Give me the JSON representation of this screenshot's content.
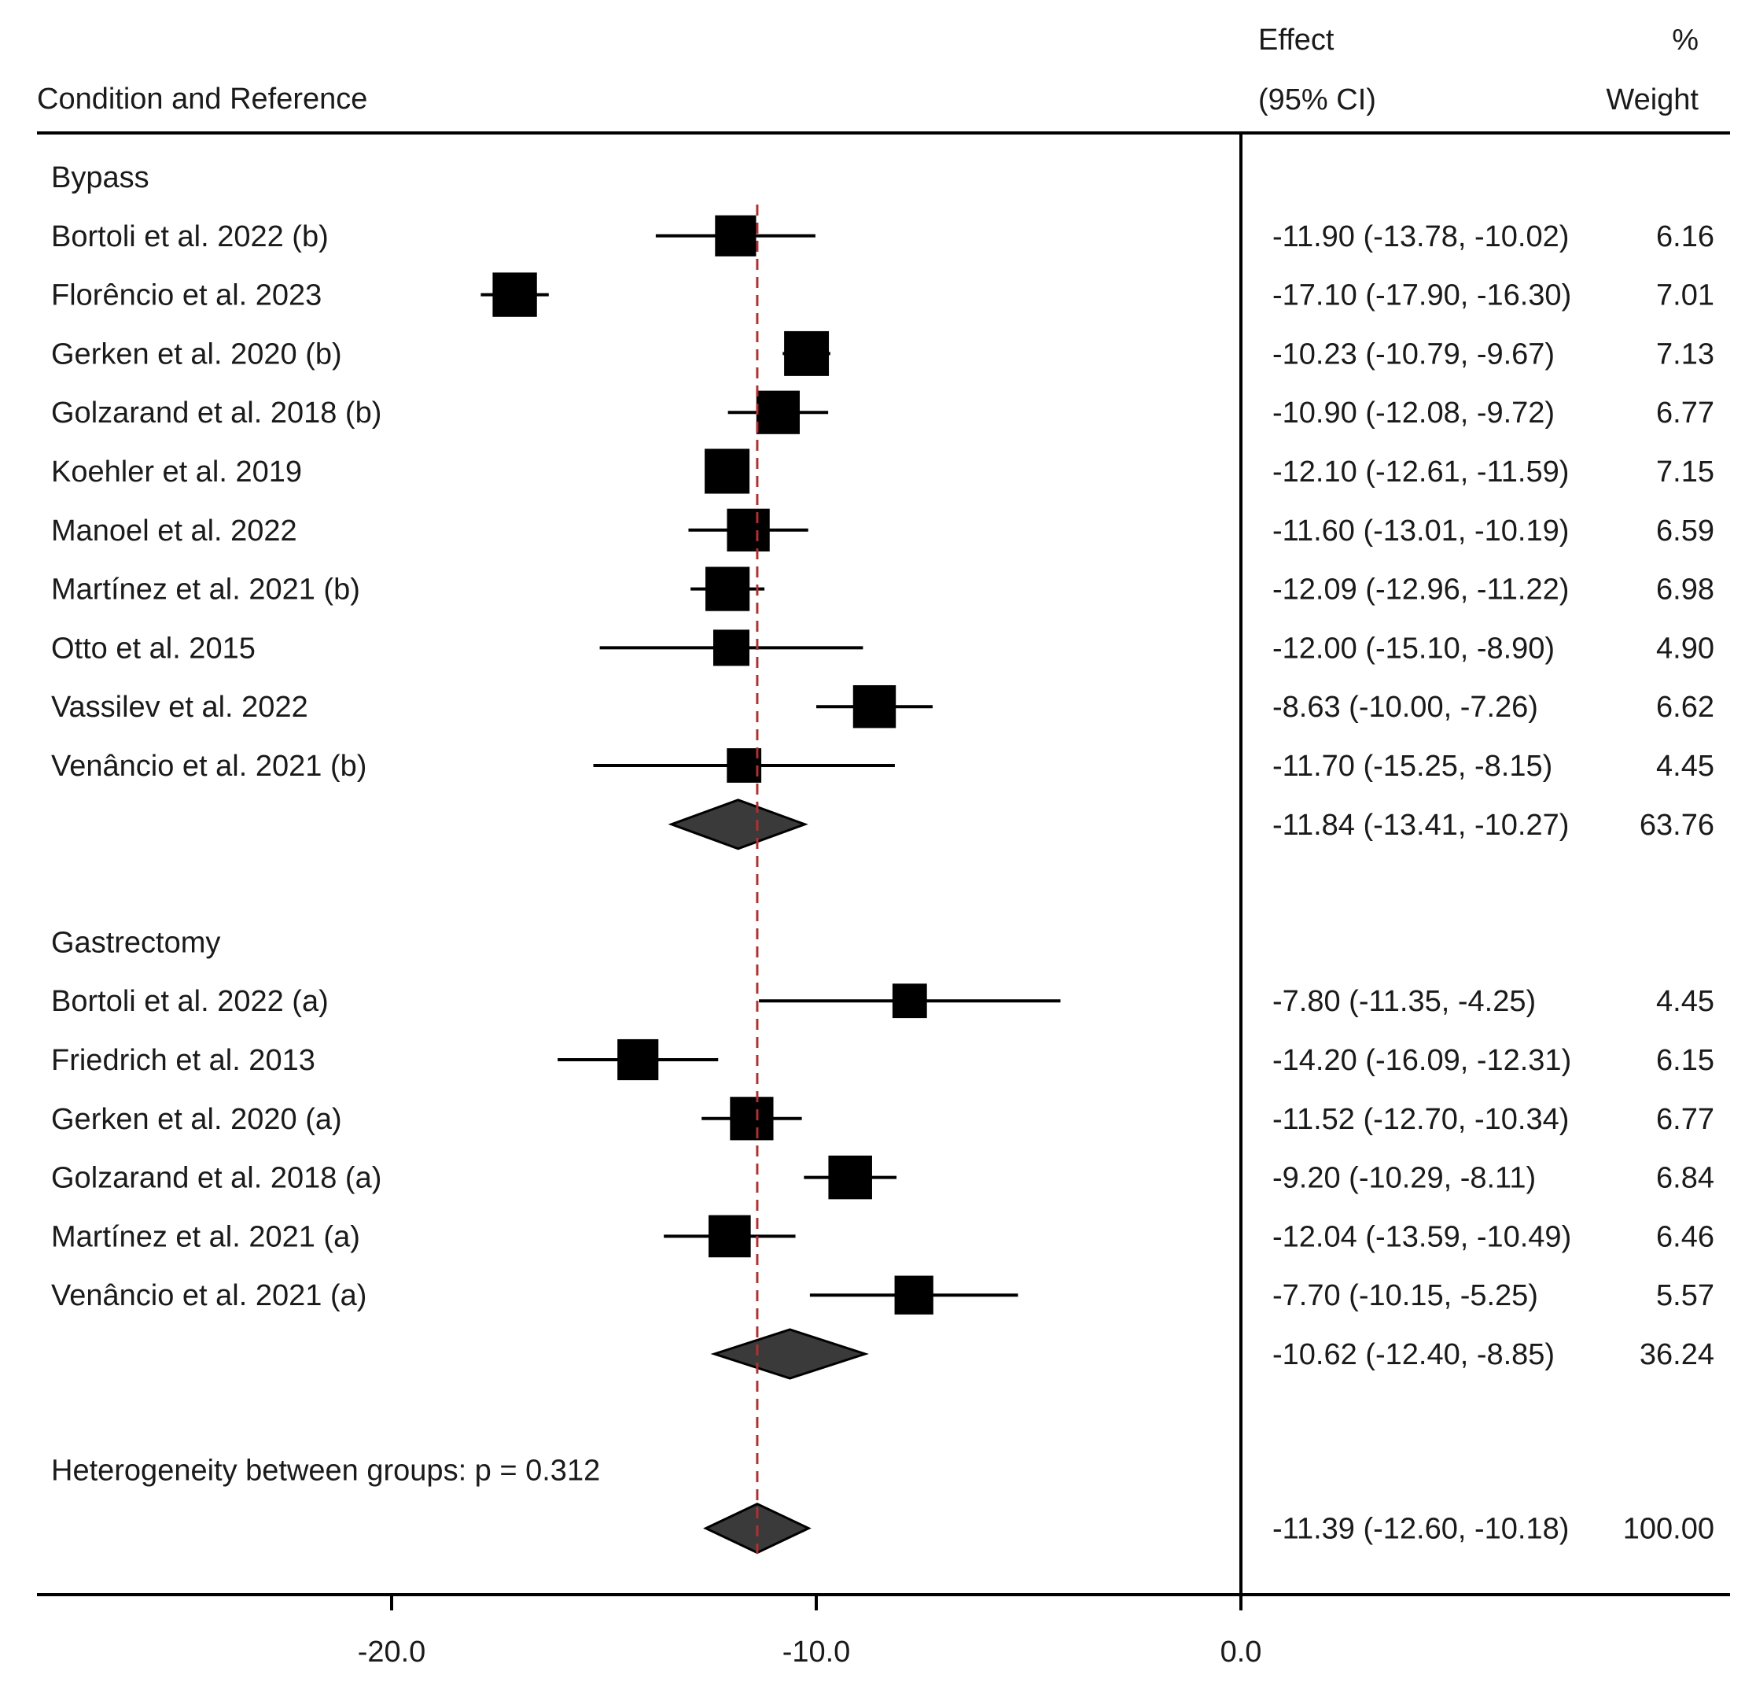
{
  "chart_data": {
    "type": "forest",
    "headers": {
      "study": "Condition and Reference",
      "effect_line1": "Effect",
      "effect_line2": "(95% CI)",
      "weight_line1": "%",
      "weight_line2": "Weight"
    },
    "xlim": [
      -28.3,
      11.3
    ],
    "ticks": [
      {
        "value": -20,
        "label": "-20.0"
      },
      {
        "value": -10,
        "label": "-10.0"
      },
      {
        "value": 0,
        "label": "0.0"
      }
    ],
    "reference_line": 0,
    "overall_line": -11.39,
    "colors": {
      "axis": "#000000",
      "marker": "#000000",
      "diamond": "#3a3a3a",
      "overall_line": "#b03030"
    },
    "groups": [
      {
        "name": "Bypass",
        "studies": [
          {
            "label": "Bortoli et al. 2022 (b)",
            "effect": -11.9,
            "lower": -13.78,
            "upper": -10.02,
            "ci_text": "-11.90 (-13.78, -10.02)",
            "weight_text": "6.16"
          },
          {
            "label": "Florêncio et al. 2023",
            "effect": -17.1,
            "lower": -17.9,
            "upper": -16.3,
            "ci_text": "-17.10 (-17.90, -16.30)",
            "weight_text": "7.01"
          },
          {
            "label": "Gerken et al. 2020 (b)",
            "effect": -10.23,
            "lower": -10.79,
            "upper": -9.67,
            "ci_text": "-10.23 (-10.79, -9.67)",
            "weight_text": "7.13"
          },
          {
            "label": "Golzarand et al. 2018 (b)",
            "effect": -10.9,
            "lower": -12.08,
            "upper": -9.72,
            "ci_text": "-10.90 (-12.08, -9.72)",
            "weight_text": "6.77"
          },
          {
            "label": "Koehler et al. 2019",
            "effect": -12.1,
            "lower": -12.61,
            "upper": -11.59,
            "ci_text": "-12.10 (-12.61, -11.59)",
            "weight_text": "7.15"
          },
          {
            "label": "Manoel et al. 2022",
            "effect": -11.6,
            "lower": -13.01,
            "upper": -10.19,
            "ci_text": "-11.60 (-13.01, -10.19)",
            "weight_text": "6.59"
          },
          {
            "label": "Martínez et al. 2021 (b)",
            "effect": -12.09,
            "lower": -12.96,
            "upper": -11.22,
            "ci_text": "-12.09 (-12.96, -11.22)",
            "weight_text": "6.98"
          },
          {
            "label": "Otto et al. 2015",
            "effect": -12.0,
            "lower": -15.1,
            "upper": -8.9,
            "ci_text": "-12.00 (-15.10, -8.90)",
            "weight_text": "4.90"
          },
          {
            "label": "Vassilev et al. 2022",
            "effect": -8.63,
            "lower": -10.0,
            "upper": -7.26,
            "ci_text": "-8.63 (-10.00, -7.26)",
            "weight_text": "6.62"
          },
          {
            "label": "Venâncio et al. 2021 (b)",
            "effect": -11.7,
            "lower": -15.25,
            "upper": -8.15,
            "ci_text": "-11.70 (-15.25, -8.15)",
            "weight_text": "4.45"
          }
        ],
        "subtotal": {
          "effect": -11.84,
          "lower": -13.41,
          "upper": -10.27,
          "ci_text": "-11.84 (-13.41, -10.27)",
          "weight_text": "63.76"
        }
      },
      {
        "name": "Gastrectomy",
        "studies": [
          {
            "label": "Bortoli et al. 2022 (a)",
            "effect": -7.8,
            "lower": -11.35,
            "upper": -4.25,
            "ci_text": "-7.80 (-11.35, -4.25)",
            "weight_text": "4.45"
          },
          {
            "label": "Friedrich et al. 2013",
            "effect": -14.2,
            "lower": -16.09,
            "upper": -12.31,
            "ci_text": "-14.20 (-16.09, -12.31)",
            "weight_text": "6.15"
          },
          {
            "label": "Gerken et al. 2020 (a)",
            "effect": -11.52,
            "lower": -12.7,
            "upper": -10.34,
            "ci_text": "-11.52 (-12.70, -10.34)",
            "weight_text": "6.77"
          },
          {
            "label": "Golzarand et al. 2018 (a)",
            "effect": -9.2,
            "lower": -10.29,
            "upper": -8.11,
            "ci_text": "-9.20 (-10.29, -8.11)",
            "weight_text": "6.84"
          },
          {
            "label": "Martínez et al. 2021 (a)",
            "effect": -12.04,
            "lower": -13.59,
            "upper": -10.49,
            "ci_text": "-12.04 (-13.59, -10.49)",
            "weight_text": "6.46"
          },
          {
            "label": "Venâncio et al. 2021 (a)",
            "effect": -7.7,
            "lower": -10.15,
            "upper": -5.25,
            "ci_text": "-7.70 (-10.15, -5.25)",
            "weight_text": "5.57"
          }
        ],
        "subtotal": {
          "effect": -10.62,
          "lower": -12.4,
          "upper": -8.85,
          "ci_text": "-10.62 (-12.40, -8.85)",
          "weight_text": "36.24"
        }
      }
    ],
    "heterogeneity_text": "Heterogeneity between groups: p = 0.312",
    "overall": {
      "effect": -11.39,
      "lower": -12.6,
      "upper": -10.18,
      "ci_text": "-11.39 (-12.60, -10.18)",
      "weight_text": "100.00"
    }
  }
}
